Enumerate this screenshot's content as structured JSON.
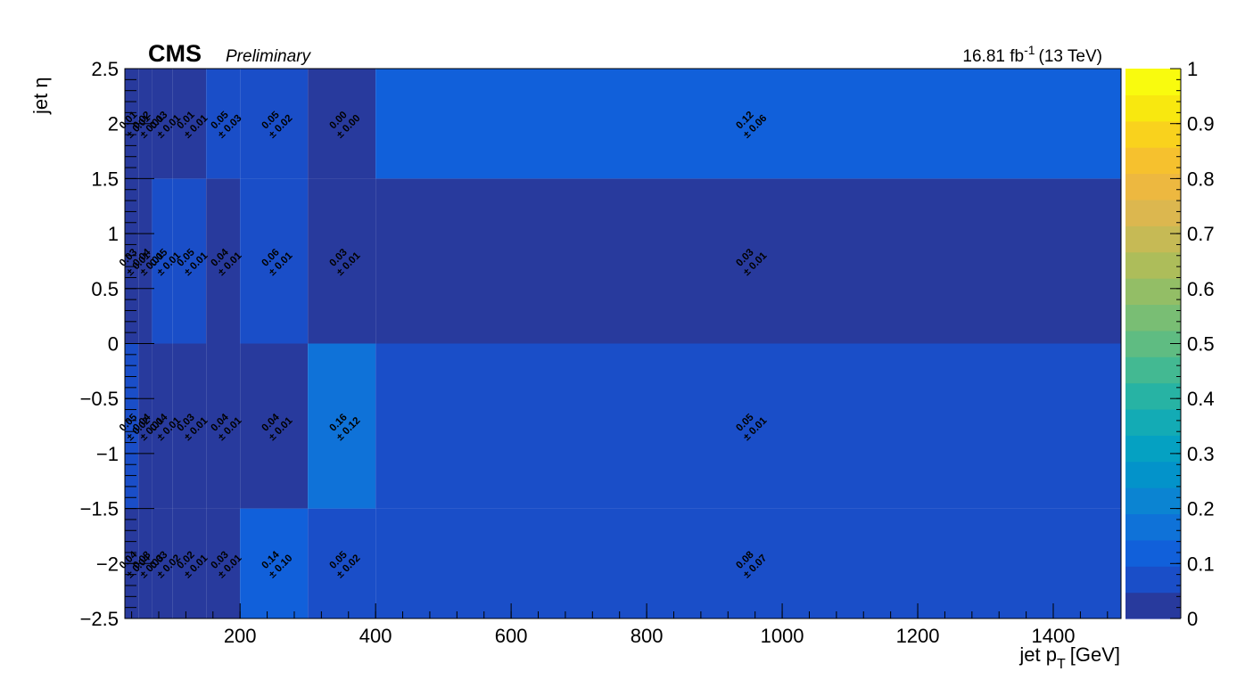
{
  "header": {
    "experiment": "CMS",
    "status": "Preliminary",
    "lumi": "16.81 fb",
    "lumi_exp": "-1",
    "energy": "(13 TeV)"
  },
  "chart_data": {
    "type": "heatmap",
    "title": "",
    "xlabel": "jet p",
    "xlabel_sub": "T",
    "xlabel_unit": "[GeV]",
    "ylabel": "jet η",
    "xlim": [
      30,
      1500
    ],
    "ylim": [
      -2.5,
      2.5
    ],
    "zlim": [
      0,
      1
    ],
    "x_edges": [
      30,
      50,
      70,
      100,
      150,
      200,
      300,
      400,
      1500
    ],
    "y_edges": [
      -2.5,
      -1.5,
      0,
      1.5,
      2.5
    ],
    "x_ticks": [
      200,
      400,
      600,
      800,
      1000,
      1200,
      1400
    ],
    "x_tick_labels": [
      "200",
      "400",
      "600",
      "800",
      "1000",
      "1200",
      "1400"
    ],
    "y_ticks": [
      -2.5,
      -2,
      -1.5,
      -1,
      -0.5,
      0,
      0.5,
      1,
      1.5,
      2,
      2.5
    ],
    "y_tick_labels": [
      "−2.5",
      "−2",
      "−1.5",
      "−1",
      "−0.5",
      "0",
      "0.5",
      "1",
      "1.5",
      "2",
      "2.5"
    ],
    "z_ticks": [
      0,
      0.1,
      0.2,
      0.3,
      0.4,
      0.5,
      0.6,
      0.7,
      0.8,
      0.9,
      1
    ],
    "z_tick_labels": [
      "0",
      "0.1",
      "0.2",
      "0.3",
      "0.4",
      "0.5",
      "0.6",
      "0.7",
      "0.8",
      "0.9",
      "1"
    ],
    "palette": [
      "#283a9d",
      "#1a4ec8",
      "#1160da",
      "#0f72d8",
      "#0b84d2",
      "#0393ca",
      "#05a1c2",
      "#13abb5",
      "#27b3a4",
      "#43b992",
      "#5fbc82",
      "#79be74",
      "#93be66",
      "#adbd5a",
      "#c6ba55",
      "#dcb74f",
      "#edb840",
      "#f6c12e",
      "#f9d21d",
      "#f8e80f",
      "#f9fb0e"
    ],
    "bins": [
      {
        "x": [
          30,
          50
        ],
        "y": [
          -2.5,
          -1.5
        ],
        "value": 0.04,
        "label": "0.04",
        "error_label": "± 0.04"
      },
      {
        "x": [
          50,
          70
        ],
        "y": [
          -2.5,
          -1.5
        ],
        "value": 0.03,
        "label": "0.03",
        "error_label": "± 0.03"
      },
      {
        "x": [
          70,
          100
        ],
        "y": [
          -2.5,
          -1.5
        ],
        "value": 0.03,
        "label": "0.03",
        "error_label": "± 0.02"
      },
      {
        "x": [
          100,
          150
        ],
        "y": [
          -2.5,
          -1.5
        ],
        "value": 0.02,
        "label": "0.02",
        "error_label": "± 0.01"
      },
      {
        "x": [
          150,
          200
        ],
        "y": [
          -2.5,
          -1.5
        ],
        "value": 0.03,
        "label": "0.03",
        "error_label": "± 0.01"
      },
      {
        "x": [
          200,
          300
        ],
        "y": [
          -2.5,
          -1.5
        ],
        "value": 0.14,
        "label": "0.14",
        "error_label": "± 0.10"
      },
      {
        "x": [
          300,
          400
        ],
        "y": [
          -2.5,
          -1.5
        ],
        "value": 0.05,
        "label": "0.05",
        "error_label": "± 0.02"
      },
      {
        "x": [
          400,
          1500
        ],
        "y": [
          -2.5,
          -1.5
        ],
        "value": 0.08,
        "label": "0.08",
        "error_label": "± 0.07"
      },
      {
        "x": [
          30,
          50
        ],
        "y": [
          -1.5,
          0
        ],
        "value": 0.05,
        "label": "0.05",
        "error_label": "± 0.02"
      },
      {
        "x": [
          50,
          70
        ],
        "y": [
          -1.5,
          0
        ],
        "value": 0.04,
        "label": "0.04",
        "error_label": "± 0.01"
      },
      {
        "x": [
          70,
          100
        ],
        "y": [
          -1.5,
          0
        ],
        "value": 0.04,
        "label": "0.04",
        "error_label": "± 0.01"
      },
      {
        "x": [
          100,
          150
        ],
        "y": [
          -1.5,
          0
        ],
        "value": 0.03,
        "label": "0.03",
        "error_label": "± 0.01"
      },
      {
        "x": [
          150,
          200
        ],
        "y": [
          -1.5,
          0
        ],
        "value": 0.04,
        "label": "0.04",
        "error_label": "± 0.01"
      },
      {
        "x": [
          200,
          300
        ],
        "y": [
          -1.5,
          0
        ],
        "value": 0.04,
        "label": "0.04",
        "error_label": "± 0.01"
      },
      {
        "x": [
          300,
          400
        ],
        "y": [
          -1.5,
          0
        ],
        "value": 0.16,
        "label": "0.16",
        "error_label": "± 0.12"
      },
      {
        "x": [
          400,
          1500
        ],
        "y": [
          -1.5,
          0
        ],
        "value": 0.05,
        "label": "0.05",
        "error_label": "± 0.01"
      },
      {
        "x": [
          30,
          50
        ],
        "y": [
          0,
          1.5
        ],
        "value": 0.03,
        "label": "0.03",
        "error_label": "± 0.01"
      },
      {
        "x": [
          50,
          70
        ],
        "y": [
          0,
          1.5
        ],
        "value": 0.04,
        "label": "0.04",
        "error_label": "± 0.01"
      },
      {
        "x": [
          70,
          100
        ],
        "y": [
          0,
          1.5
        ],
        "value": 0.05,
        "label": "0.05",
        "error_label": "± 0.01"
      },
      {
        "x": [
          100,
          150
        ],
        "y": [
          0,
          1.5
        ],
        "value": 0.05,
        "label": "0.05",
        "error_label": "± 0.01"
      },
      {
        "x": [
          150,
          200
        ],
        "y": [
          0,
          1.5
        ],
        "value": 0.04,
        "label": "0.04",
        "error_label": "± 0.01"
      },
      {
        "x": [
          200,
          300
        ],
        "y": [
          0,
          1.5
        ],
        "value": 0.06,
        "label": "0.06",
        "error_label": "± 0.01"
      },
      {
        "x": [
          300,
          400
        ],
        "y": [
          0,
          1.5
        ],
        "value": 0.03,
        "label": "0.03",
        "error_label": "± 0.01"
      },
      {
        "x": [
          400,
          1500
        ],
        "y": [
          0,
          1.5
        ],
        "value": 0.03,
        "label": "0.03",
        "error_label": "± 0.01"
      },
      {
        "x": [
          30,
          50
        ],
        "y": [
          1.5,
          2.5
        ],
        "value": 0.01,
        "label": "0.01",
        "error_label": "± 0.01"
      },
      {
        "x": [
          50,
          70
        ],
        "y": [
          1.5,
          2.5
        ],
        "value": 0.02,
        "label": "0.02",
        "error_label": "± 0.01"
      },
      {
        "x": [
          70,
          100
        ],
        "y": [
          1.5,
          2.5
        ],
        "value": 0.03,
        "label": "0.03",
        "error_label": "± 0.01"
      },
      {
        "x": [
          100,
          150
        ],
        "y": [
          1.5,
          2.5
        ],
        "value": 0.01,
        "label": "0.01",
        "error_label": "± 0.01"
      },
      {
        "x": [
          150,
          200
        ],
        "y": [
          1.5,
          2.5
        ],
        "value": 0.05,
        "label": "0.05",
        "error_label": "± 0.03"
      },
      {
        "x": [
          200,
          300
        ],
        "y": [
          1.5,
          2.5
        ],
        "value": 0.05,
        "label": "0.05",
        "error_label": "± 0.02"
      },
      {
        "x": [
          300,
          400
        ],
        "y": [
          1.5,
          2.5
        ],
        "value": 0.0,
        "label": "0.00",
        "error_label": "± 0.00"
      },
      {
        "x": [
          400,
          1500
        ],
        "y": [
          1.5,
          2.5
        ],
        "value": 0.12,
        "label": "0.12",
        "error_label": "± 0.06"
      }
    ]
  }
}
